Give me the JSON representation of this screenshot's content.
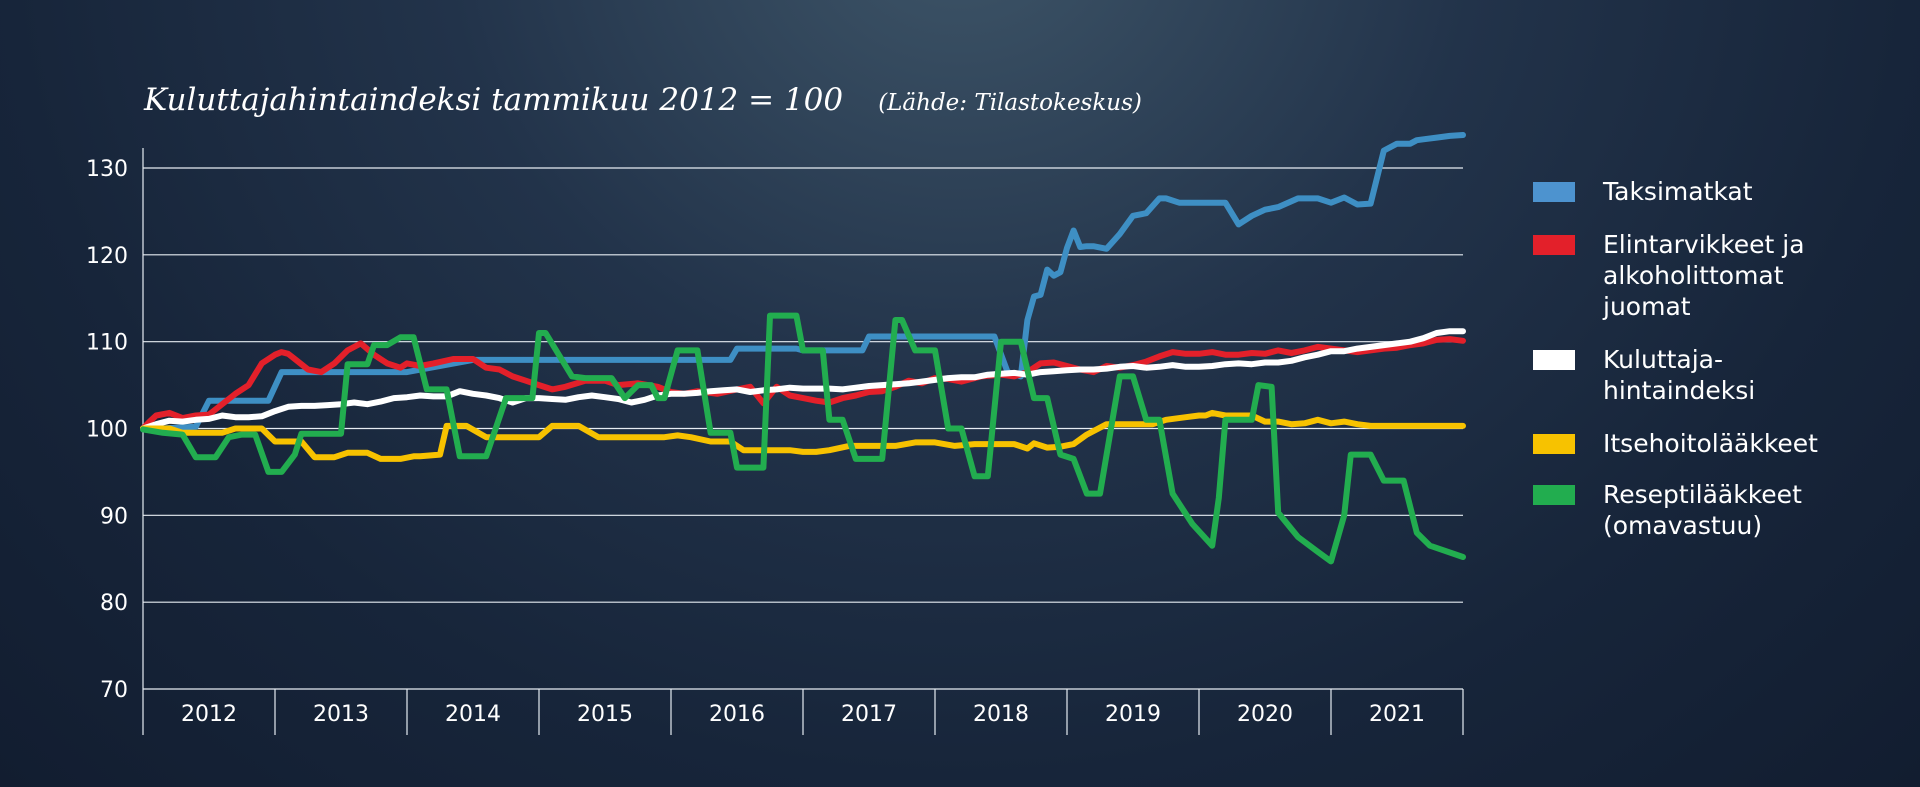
{
  "title": "Kuluttajahintaindeksi tammikuu 2012 = 100",
  "source": "(Lähde: Tilastokeskus)",
  "chart_data": {
    "type": "line",
    "title": "Kuluttajahintaindeksi tammikuu 2012 = 100",
    "subtitle": "(Lähde: Tilastokeskus)",
    "xlabel": "",
    "ylabel": "",
    "ylim": [
      70,
      133
    ],
    "xlim": [
      2012.0,
      2022.0
    ],
    "yticks": [
      70,
      80,
      90,
      100,
      110,
      120,
      130
    ],
    "xcategories": [
      "2012",
      "2013",
      "2014",
      "2015",
      "2016",
      "2017",
      "2018",
      "2019",
      "2020",
      "2021"
    ],
    "grid": "horizontal",
    "legend_position": "right",
    "series": [
      {
        "name": "Taksimatkat",
        "color": "#3e8fc4",
        "x": [
          2012.0,
          2012.4,
          2012.5,
          2012.95,
          2013.05,
          2014.0,
          2014.5,
          2015.0,
          2015.5,
          2016.0,
          2016.45,
          2016.5,
          2016.95,
          2017.0,
          2017.45,
          2017.5,
          2018.45,
          2018.55,
          2018.65,
          2018.7,
          2018.75,
          2018.8,
          2018.85,
          2018.9,
          2018.95,
          2019.0,
          2019.05,
          2019.1,
          2019.15,
          2019.2,
          2019.3,
          2019.4,
          2019.5,
          2019.6,
          2019.7,
          2019.75,
          2019.85,
          2020.0,
          2020.2,
          2020.3,
          2020.4,
          2020.5,
          2020.6,
          2020.75,
          2020.9,
          2021.0,
          2021.1,
          2021.2,
          2021.3,
          2021.4,
          2021.5,
          2021.55,
          2021.6,
          2021.65,
          2021.7,
          2021.8,
          2021.9,
          2022.0
        ],
        "values": [
          99.9,
          100.2,
          103.2,
          103.2,
          106.5,
          106.5,
          107.9,
          107.9,
          107.9,
          107.9,
          107.9,
          109.2,
          109.2,
          109.0,
          109.0,
          110.6,
          110.6,
          106.5,
          106.0,
          112.5,
          115.2,
          115.4,
          118.3,
          117.6,
          118.0,
          120.8,
          122.8,
          120.9,
          121.0,
          121.0,
          120.7,
          122.4,
          124.5,
          124.8,
          126.5,
          126.5,
          126.0,
          126.0,
          126.0,
          123.5,
          124.5,
          125.2,
          125.5,
          126.5,
          126.5,
          126.0,
          126.6,
          125.8,
          125.9,
          132.0,
          132.8,
          132.8,
          132.8,
          133.2,
          133.3,
          133.5,
          133.7,
          133.8
        ]
      },
      {
        "name": "Elintarvikkeet ja alkoholittomat juomat",
        "color": "#e3202a",
        "x": [
          2012.0,
          2012.05,
          2012.1,
          2012.2,
          2012.3,
          2012.4,
          2012.5,
          2012.6,
          2012.7,
          2012.8,
          2012.9,
          2013.0,
          2013.05,
          2013.1,
          2013.15,
          2013.25,
          2013.35,
          2013.45,
          2013.55,
          2013.65,
          2013.75,
          2013.85,
          2013.95,
          2014.0,
          2014.1,
          2014.2,
          2014.35,
          2014.5,
          2014.6,
          2014.7,
          2014.8,
          2014.9,
          2015.0,
          2015.1,
          2015.2,
          2015.35,
          2015.5,
          2015.6,
          2015.75,
          2015.9,
          2016.0,
          2016.1,
          2016.2,
          2016.35,
          2016.5,
          2016.6,
          2016.7,
          2016.8,
          2016.9,
          2017.0,
          2017.1,
          2017.2,
          2017.3,
          2017.4,
          2017.5,
          2017.6,
          2017.7,
          2017.8,
          2017.9,
          2018.0,
          2018.1,
          2018.2,
          2018.35,
          2018.5,
          2018.6,
          2018.7,
          2018.8,
          2018.9,
          2019.0,
          2019.1,
          2019.2,
          2019.3,
          2019.4,
          2019.5,
          2019.6,
          2019.7,
          2019.8,
          2019.9,
          2020.0,
          2020.1,
          2020.2,
          2020.3,
          2020.4,
          2020.5,
          2020.6,
          2020.7,
          2020.8,
          2020.9,
          2021.0,
          2021.1,
          2021.2,
          2021.3,
          2021.4,
          2021.5,
          2021.6,
          2021.7,
          2021.8,
          2021.9,
          2022.0
        ],
        "values": [
          100.0,
          100.8,
          101.5,
          101.8,
          101.2,
          101.5,
          101.6,
          102.8,
          104.0,
          105.0,
          107.5,
          108.5,
          108.8,
          108.6,
          108.0,
          106.8,
          106.5,
          107.5,
          109.0,
          109.8,
          108.5,
          107.5,
          107.0,
          107.5,
          107.2,
          107.5,
          108.0,
          108.0,
          107.0,
          106.8,
          106.0,
          105.5,
          105.0,
          104.5,
          104.8,
          105.5,
          105.5,
          105.0,
          105.2,
          104.8,
          104.2,
          104.0,
          104.3,
          104.0,
          104.5,
          104.8,
          102.9,
          104.8,
          103.8,
          103.5,
          103.2,
          103.0,
          103.5,
          103.8,
          104.2,
          104.3,
          104.8,
          105.5,
          105.2,
          105.8,
          105.7,
          105.4,
          106.0,
          106.2,
          106.0,
          106.5,
          107.5,
          107.6,
          107.2,
          106.8,
          106.5,
          107.2,
          107.0,
          107.3,
          107.7,
          108.3,
          108.8,
          108.6,
          108.6,
          108.8,
          108.5,
          108.5,
          108.7,
          108.6,
          109.0,
          108.7,
          109.0,
          109.4,
          109.2,
          109.0,
          108.8,
          109.0,
          109.2,
          109.3,
          109.6,
          109.8,
          110.2,
          110.3,
          110.1
        ]
      },
      {
        "name": "Kuluttaja-hintaindeksi",
        "color": "#ffffff",
        "x": [
          2012.0,
          2012.1,
          2012.2,
          2012.3,
          2012.4,
          2012.5,
          2012.6,
          2012.7,
          2012.8,
          2012.9,
          2013.0,
          2013.1,
          2013.2,
          2013.3,
          2013.4,
          2013.5,
          2013.6,
          2013.7,
          2013.8,
          2013.9,
          2014.0,
          2014.1,
          2014.2,
          2014.3,
          2014.4,
          2014.5,
          2014.6,
          2014.7,
          2014.8,
          2014.9,
          2015.0,
          2015.1,
          2015.2,
          2015.3,
          2015.4,
          2015.5,
          2015.6,
          2015.7,
          2015.8,
          2015.9,
          2016.0,
          2016.1,
          2016.2,
          2016.3,
          2016.4,
          2016.5,
          2016.6,
          2016.7,
          2016.8,
          2016.9,
          2017.0,
          2017.1,
          2017.2,
          2017.3,
          2017.4,
          2017.5,
          2017.6,
          2017.7,
          2017.8,
          2017.9,
          2018.0,
          2018.1,
          2018.2,
          2018.3,
          2018.4,
          2018.5,
          2018.6,
          2018.7,
          2018.8,
          2018.9,
          2019.0,
          2019.1,
          2019.2,
          2019.3,
          2019.4,
          2019.5,
          2019.6,
          2019.7,
          2019.8,
          2019.9,
          2020.0,
          2020.1,
          2020.2,
          2020.3,
          2020.4,
          2020.5,
          2020.6,
          2020.7,
          2020.8,
          2020.9,
          2021.0,
          2021.1,
          2021.2,
          2021.3,
          2021.4,
          2021.5,
          2021.6,
          2021.7,
          2021.8,
          2021.9,
          2022.0
        ],
        "values": [
          100.0,
          100.5,
          100.9,
          100.8,
          101.0,
          101.1,
          101.5,
          101.3,
          101.3,
          101.4,
          102.0,
          102.5,
          102.6,
          102.6,
          102.7,
          102.8,
          103.0,
          102.8,
          103.1,
          103.5,
          103.6,
          103.8,
          103.7,
          103.7,
          104.3,
          104.0,
          103.8,
          103.5,
          103.0,
          103.5,
          103.5,
          103.4,
          103.3,
          103.6,
          103.8,
          103.6,
          103.4,
          103.0,
          103.3,
          103.8,
          104.0,
          104.0,
          104.1,
          104.3,
          104.4,
          104.5,
          104.2,
          104.4,
          104.5,
          104.7,
          104.6,
          104.6,
          104.6,
          104.5,
          104.7,
          104.9,
          105.0,
          105.1,
          105.2,
          105.4,
          105.6,
          105.8,
          105.9,
          105.9,
          106.2,
          106.3,
          106.4,
          106.2,
          106.5,
          106.6,
          106.7,
          106.8,
          106.8,
          106.9,
          107.1,
          107.2,
          107.0,
          107.1,
          107.3,
          107.1,
          107.1,
          107.2,
          107.4,
          107.5,
          107.4,
          107.6,
          107.6,
          107.8,
          108.2,
          108.5,
          108.9,
          108.9,
          109.2,
          109.4,
          109.6,
          109.8,
          110.0,
          110.4,
          111.0,
          111.2,
          111.2
        ]
      },
      {
        "name": "Itsehoitolääkkeet",
        "color": "#f7c200",
        "x": [
          2012.0,
          2012.2,
          2012.3,
          2012.6,
          2012.7,
          2012.9,
          2013.0,
          2013.1,
          2013.2,
          2013.3,
          2013.45,
          2013.55,
          2013.7,
          2013.8,
          2013.95,
          2014.05,
          2014.1,
          2014.25,
          2014.3,
          2014.45,
          2014.6,
          2014.7,
          2014.75,
          2014.95,
          2015.0,
          2015.1,
          2015.3,
          2015.45,
          2015.6,
          2015.75,
          2015.8,
          2015.95,
          2016.05,
          2016.15,
          2016.3,
          2016.45,
          2016.55,
          2016.7,
          2016.85,
          2016.9,
          2017.0,
          2017.1,
          2017.2,
          2017.35,
          2017.5,
          2017.7,
          2017.85,
          2018.0,
          2018.15,
          2018.3,
          2018.4,
          2018.5,
          2018.6,
          2018.7,
          2018.75,
          2018.85,
          2018.95,
          2019.05,
          2019.15,
          2019.3,
          2019.45,
          2019.55,
          2019.65,
          2019.75,
          2019.9,
          2020.0,
          2020.05,
          2020.1,
          2020.2,
          2020.4,
          2020.5,
          2020.6,
          2020.7,
          2020.8,
          2020.9,
          2021.0,
          2021.1,
          2021.2,
          2021.3,
          2021.5,
          2021.8,
          2021.9,
          2022.0
        ],
        "values": [
          100.0,
          100.0,
          99.5,
          99.5,
          100.0,
          100.0,
          98.5,
          98.5,
          98.5,
          96.7,
          96.7,
          97.2,
          97.2,
          96.5,
          96.5,
          96.8,
          96.8,
          97.0,
          100.3,
          100.3,
          99.0,
          99.0,
          99.0,
          99.0,
          99.0,
          100.3,
          100.3,
          99.0,
          99.0,
          99.0,
          99.0,
          99.0,
          99.2,
          99.0,
          98.5,
          98.5,
          97.5,
          97.5,
          97.5,
          97.5,
          97.3,
          97.3,
          97.5,
          98.0,
          98.0,
          98.0,
          98.4,
          98.4,
          98.0,
          98.2,
          98.2,
          98.2,
          98.2,
          97.7,
          98.3,
          97.8,
          97.9,
          98.2,
          99.3,
          100.5,
          100.5,
          100.5,
          100.5,
          101.0,
          101.3,
          101.5,
          101.5,
          101.8,
          101.5,
          101.5,
          100.8,
          100.8,
          100.5,
          100.6,
          101.0,
          100.6,
          100.8,
          100.5,
          100.3,
          100.3,
          100.3,
          100.3,
          100.3
        ]
      },
      {
        "name": "Reseptilääkkeet (omavastuu)",
        "color": "#22ad4f",
        "x": [
          2012.0,
          2012.15,
          2012.3,
          2012.4,
          2012.45,
          2012.55,
          2012.65,
          2012.75,
          2012.85,
          2012.95,
          2013.05,
          2013.15,
          2013.2,
          2013.35,
          2013.4,
          2013.5,
          2013.55,
          2013.7,
          2013.75,
          2013.85,
          2013.95,
          2014.05,
          2014.15,
          2014.25,
          2014.3,
          2014.4,
          2014.45,
          2014.6,
          2014.75,
          2014.85,
          2014.95,
          2015.0,
          2015.05,
          2015.25,
          2015.35,
          2015.45,
          2015.55,
          2015.65,
          2015.75,
          2015.85,
          2015.9,
          2015.95,
          2016.05,
          2016.2,
          2016.3,
          2016.35,
          2016.45,
          2016.5,
          2016.6,
          2016.7,
          2016.75,
          2016.85,
          2016.95,
          2017.0,
          2017.15,
          2017.2,
          2017.3,
          2017.4,
          2017.5,
          2017.6,
          2017.7,
          2017.75,
          2017.85,
          2018.0,
          2018.1,
          2018.2,
          2018.3,
          2018.4,
          2018.5,
          2018.65,
          2018.75,
          2018.85,
          2018.95,
          2019.05,
          2019.15,
          2019.25,
          2019.4,
          2019.5,
          2019.6,
          2019.7,
          2019.8,
          2019.95,
          2020.1,
          2020.15,
          2020.2,
          2020.3,
          2020.4,
          2020.45,
          2020.55,
          2020.6,
          2020.75,
          2020.9,
          2021.0,
          2021.1,
          2021.15,
          2021.2,
          2021.3,
          2021.4,
          2021.5,
          2021.55,
          2021.65,
          2021.75,
          2022.0
        ],
        "values": [
          99.9,
          99.5,
          99.3,
          96.7,
          96.7,
          96.7,
          99.0,
          99.3,
          99.3,
          95.0,
          95.0,
          97.0,
          99.4,
          99.4,
          99.4,
          99.4,
          107.4,
          107.4,
          109.6,
          109.6,
          110.5,
          110.5,
          104.5,
          104.5,
          104.5,
          96.8,
          96.8,
          96.8,
          103.5,
          103.5,
          103.5,
          111.0,
          111.0,
          106.0,
          105.8,
          105.8,
          105.8,
          103.5,
          105.0,
          105.0,
          103.5,
          103.5,
          109.0,
          109.0,
          99.5,
          99.5,
          99.5,
          95.5,
          95.5,
          95.5,
          113.0,
          113.0,
          113.0,
          109.0,
          109.0,
          101.0,
          101.0,
          96.5,
          96.5,
          96.5,
          112.5,
          112.5,
          109.0,
          109.0,
          100.0,
          100.0,
          94.5,
          94.5,
          110.0,
          110.0,
          103.5,
          103.5,
          97.0,
          96.5,
          92.5,
          92.5,
          106.0,
          106.0,
          101.0,
          101.0,
          92.5,
          89.0,
          86.5,
          92.0,
          101.0,
          101.0,
          101.0,
          105.0,
          104.8,
          90.3,
          87.5,
          85.8,
          84.7,
          90.0,
          97.0,
          97.0,
          97.0,
          94.0,
          94.0,
          94.0,
          88.0,
          86.5,
          85.2
        ]
      }
    ]
  },
  "legend": [
    {
      "label": "Taksimatkat",
      "color": "#4d93cf"
    },
    {
      "label": "Elintarvikkeet ja\nalkoholittomat\njuomat",
      "color": "#e3202a"
    },
    {
      "label": "Kuluttaja-\nhintaindeksi",
      "color": "#ffffff"
    },
    {
      "label": "Itsehoitolääkkeet",
      "color": "#f7c200"
    },
    {
      "label": "Reseptilääkkeet\n(omavastuu)",
      "color": "#22ad4f"
    }
  ]
}
